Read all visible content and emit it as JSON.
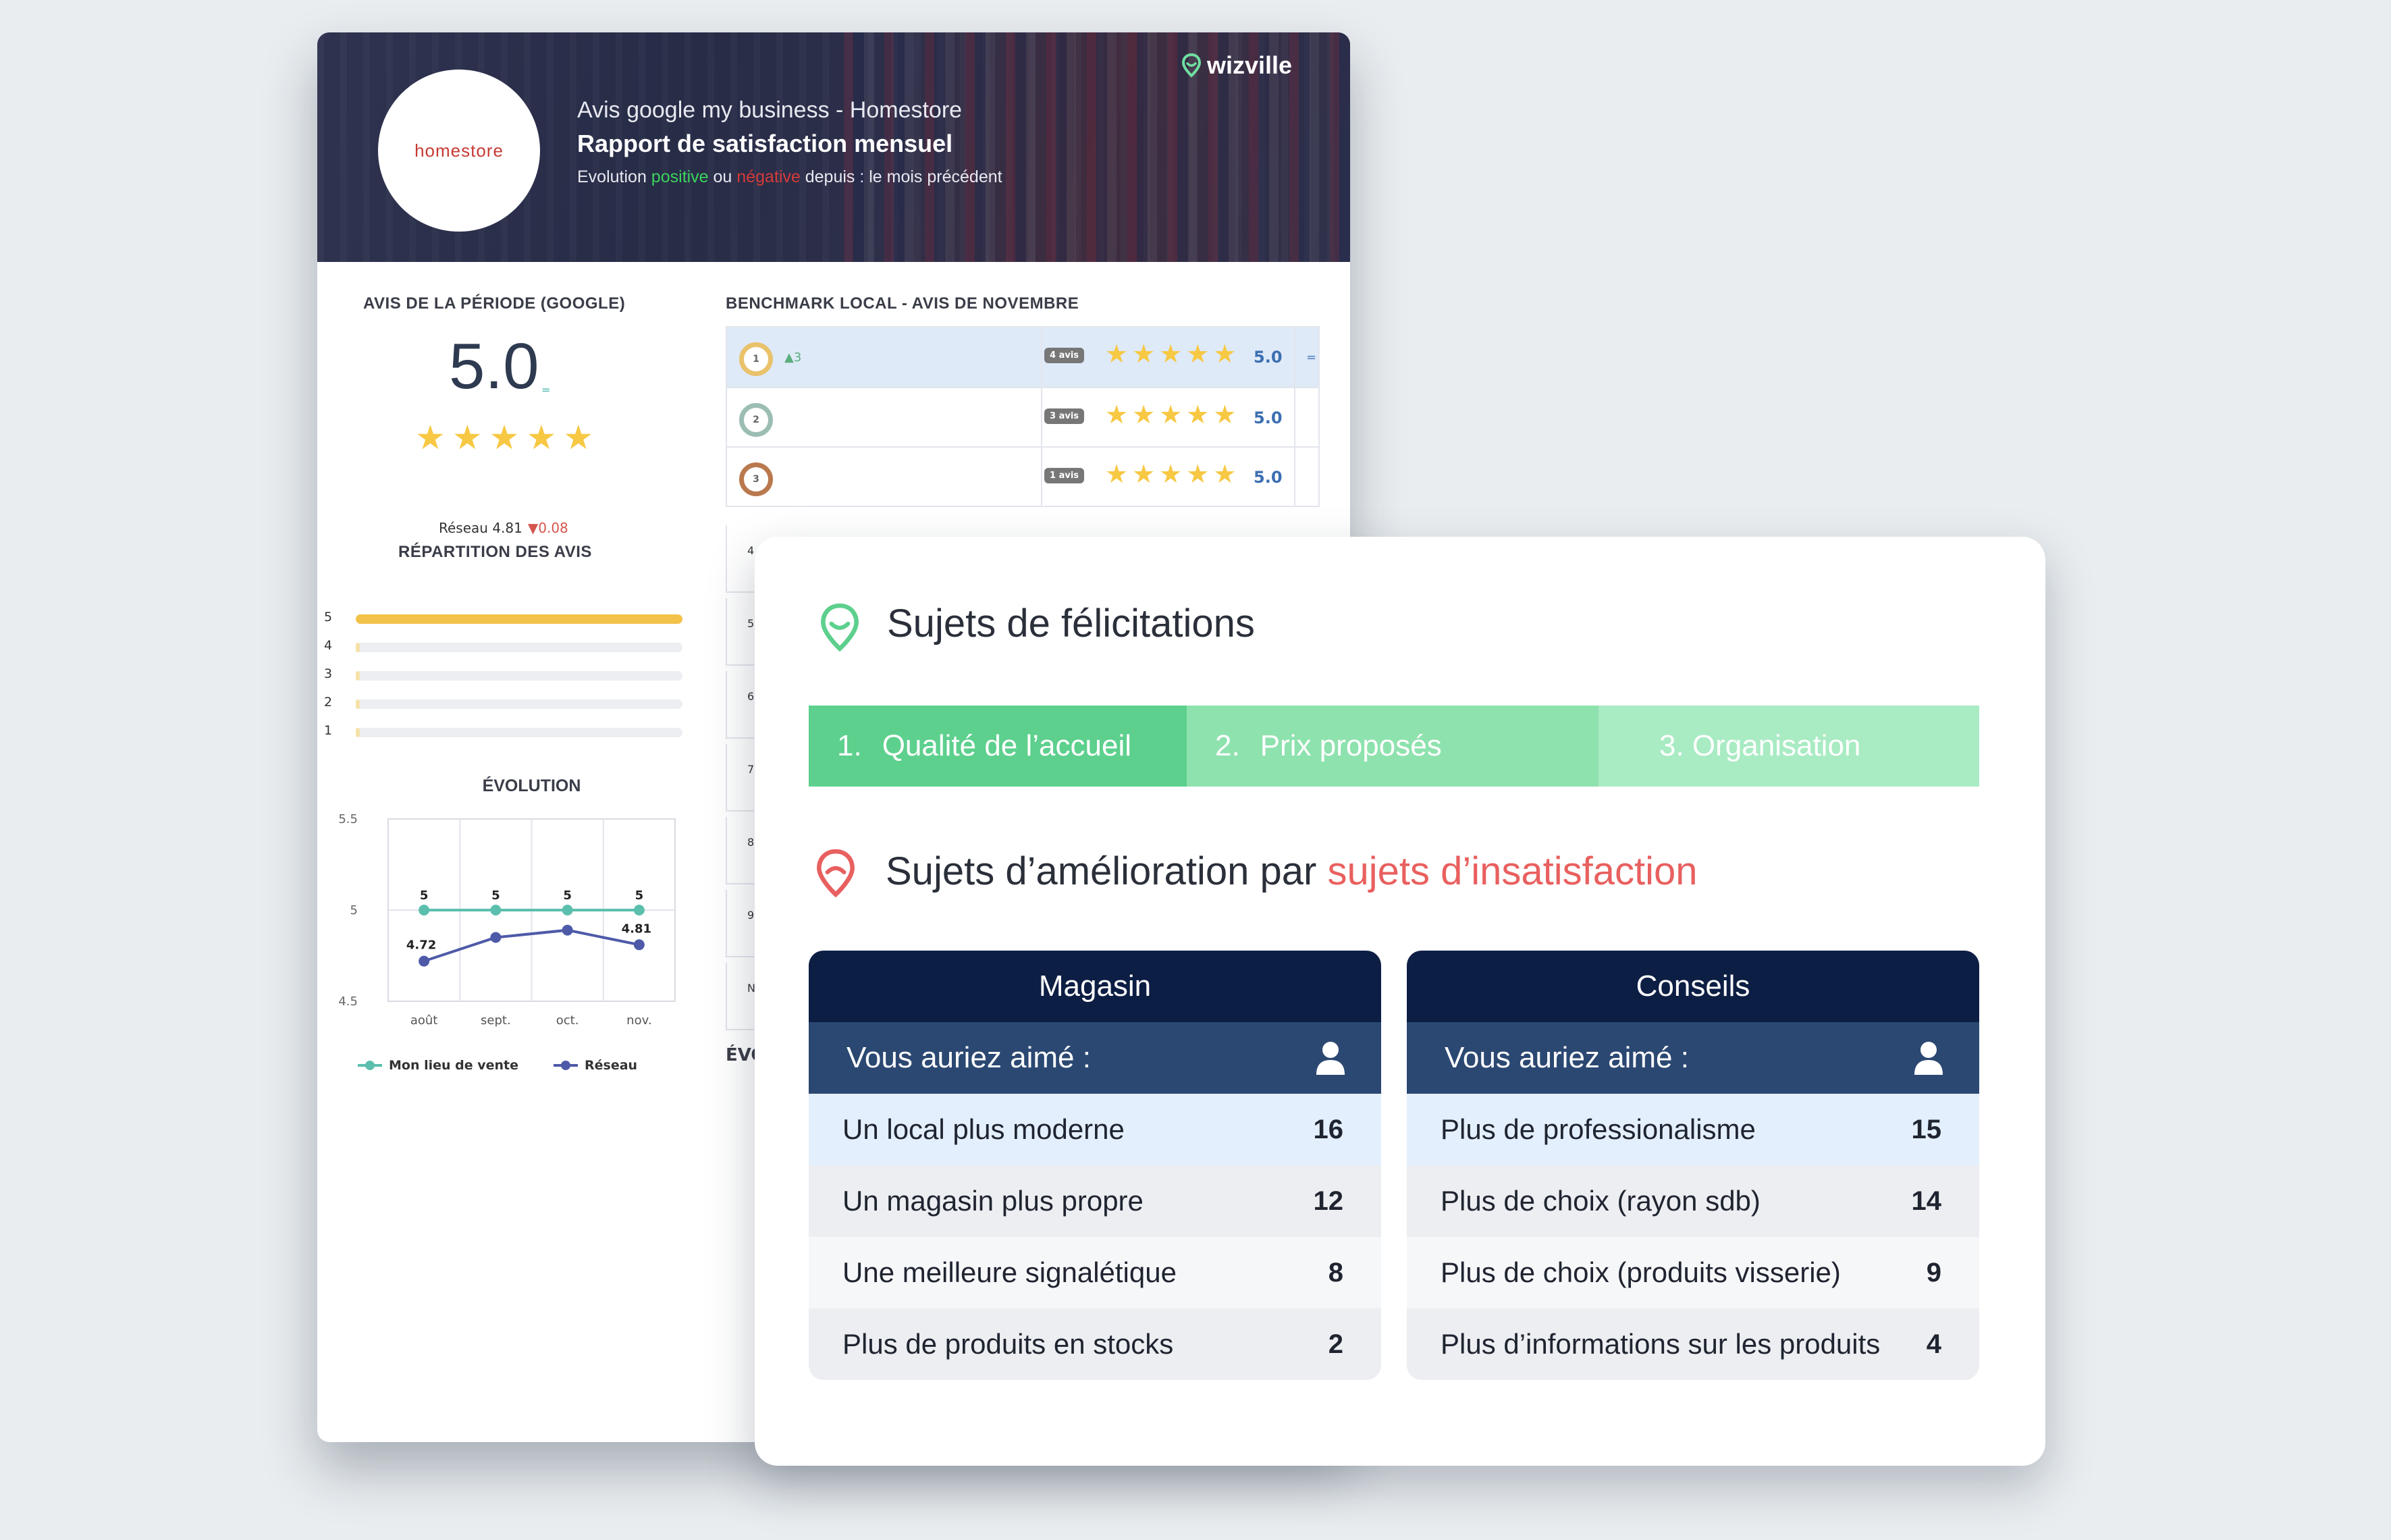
{
  "report": {
    "brand": "wizville",
    "logo_text": "homestore",
    "header": {
      "line1": "Avis google my business - Homestore",
      "line2": "Rapport de satisfaction mensuel",
      "line3_pre": "Evolution ",
      "line3_pos": "positive",
      "line3_mid": " ou ",
      "line3_neg": "négative",
      "line3_post": " depuis : le mois précédent"
    },
    "period": {
      "title": "AVIS DE LA PÉRIODE (GOOGLE)",
      "score": "5.0",
      "score_delta": "=",
      "stars": 5,
      "network_label": "Réseau 4.81",
      "network_delta": "▼0.08"
    },
    "distribution": {
      "title": "RÉPARTITION DES AVIS",
      "rows": [
        {
          "label": "5",
          "share": 1.0
        },
        {
          "label": "4",
          "share": 0.0
        },
        {
          "label": "3",
          "share": 0.0
        },
        {
          "label": "2",
          "share": 0.0
        },
        {
          "label": "1",
          "share": 0.0
        }
      ],
      "bar_color": "#f3c24a"
    },
    "benchmark": {
      "title": "BENCHMARK LOCAL - AVIS DE NOVEMBRE",
      "rows": [
        {
          "rank": "1",
          "delta": "▲3",
          "badge": "4 avis",
          "score": "5.0",
          "trend": "="
        },
        {
          "rank": "2",
          "delta": "",
          "badge": "3 avis",
          "score": "5.0",
          "trend": ""
        },
        {
          "rank": "3",
          "delta": "",
          "badge": "1 avis",
          "score": "5.0",
          "trend": ""
        }
      ],
      "left_col_partial": [
        "4",
        "5",
        "6",
        "7",
        "8",
        "9",
        "N"
      ],
      "evo_partial": "ÉVO"
    }
  },
  "chart_data": {
    "type": "line",
    "title": "ÉVOLUTION",
    "categories": [
      "août",
      "sept.",
      "oct.",
      "nov."
    ],
    "ylim": [
      4.5,
      5.5
    ],
    "yticks": [
      "5.5",
      "5",
      "4.5"
    ],
    "series": [
      {
        "name": "Mon lieu de vente",
        "values": [
          5,
          5,
          5,
          5
        ],
        "labels": [
          "5",
          "5",
          "5",
          "5"
        ],
        "color": "#5cbfae"
      },
      {
        "name": "Réseau",
        "values": [
          4.72,
          4.85,
          4.89,
          4.81
        ],
        "labels": [
          "4.72",
          "",
          "",
          "4.81"
        ],
        "color": "#4e5aa8"
      }
    ],
    "grid": true,
    "legend": "bottom"
  },
  "front": {
    "praise_title": "Sujets de félicitations",
    "tabs": [
      {
        "num": "1.",
        "label": "Qualité de l’accueil",
        "color": "#5dd08d"
      },
      {
        "num": "2.",
        "label": "Prix proposés",
        "color": "#8ee2ae"
      },
      {
        "num": "",
        "label": "3. Organisation",
        "color": "#a9ebc3"
      }
    ],
    "improve_title_pre": "Sujets d’amélioration par ",
    "improve_title_red": "sujets d’insatisfaction",
    "tables": [
      {
        "header": "Magasin",
        "sub": "Vous auriez aimé :",
        "rows": [
          {
            "label": "Un local plus moderne",
            "count": "16"
          },
          {
            "label": "Un magasin plus propre",
            "count": "12"
          },
          {
            "label": "Une meilleure signalétique",
            "count": "8"
          },
          {
            "label": "Plus de produits en stocks",
            "count": "2"
          }
        ]
      },
      {
        "header": "Conseils",
        "sub": "Vous auriez aimé :",
        "rows": [
          {
            "label": "Plus de professionalisme",
            "count": "15"
          },
          {
            "label": "Plus de choix (rayon sdb)",
            "count": "14"
          },
          {
            "label": "Plus de choix (produits visserie)",
            "count": "9"
          },
          {
            "label": "Plus d’informations sur les produits",
            "count": "4"
          }
        ]
      }
    ]
  }
}
